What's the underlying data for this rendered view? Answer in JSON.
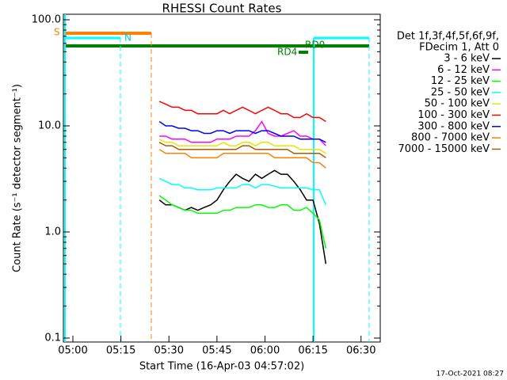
{
  "chart_data": {
    "type": "line",
    "title": "RHESSI Count Rates",
    "x_label": "Start Time (16-Apr-03 04:57:02)",
    "y_label": "Count Rate (s⁻¹ detector segment⁻¹)",
    "footer": "17-Oct-2021 08:27",
    "legend_title": [
      "Det 1f,3f,4f,5f,6f,9f,",
      "FDecim 1, Att 0"
    ],
    "annotations": [
      "S",
      "N",
      "RD0",
      "RD4"
    ],
    "log_y": true,
    "xlim": [
      "04:57:02",
      "06:36:00"
    ],
    "xticks": [
      "05:00",
      "05:15",
      "05:30",
      "05:45",
      "06:00",
      "06:15",
      "06:30"
    ],
    "ylim": [
      0.1,
      100
    ],
    "yticks": [
      0.1,
      {
        "value": 1,
        "label": "1.0"
      },
      {
        "value": 10,
        "label": "10.0"
      },
      {
        "value": 100,
        "label": "100.0"
      }
    ],
    "x": [
      "05:27",
      "05:29",
      "05:31",
      "05:33",
      "05:35",
      "05:37",
      "05:39",
      "05:41",
      "05:43",
      "05:45",
      "05:47",
      "05:49",
      "05:51",
      "05:53",
      "05:55",
      "05:57",
      "05:59",
      "06:01",
      "06:03",
      "06:05",
      "06:07",
      "06:09",
      "06:11",
      "06:13",
      "06:15",
      "06:17",
      "06:19"
    ],
    "series": [
      {
        "name": "3 - 6 keV",
        "color": "#000000",
        "values": [
          2,
          1.8,
          1.8,
          1.7,
          1.6,
          1.7,
          1.6,
          1.7,
          1.8,
          2,
          2.5,
          3,
          3.5,
          3.2,
          3,
          3.5,
          3.2,
          3.5,
          3.8,
          3.5,
          3.5,
          3,
          2.5,
          2,
          2,
          1.2,
          0.5
        ]
      },
      {
        "name": "6 - 12 keV",
        "color": "#ff00ff",
        "values": [
          8,
          8,
          7.5,
          7.5,
          7.5,
          7,
          7,
          7,
          7,
          7.5,
          7.5,
          7.5,
          8,
          8,
          8,
          9,
          11,
          8.5,
          8,
          8,
          8.5,
          9,
          8,
          8,
          7.5,
          7.5,
          6.5
        ]
      },
      {
        "name": "12 - 25 keV",
        "color": "#00ff00",
        "values": [
          2.2,
          2,
          1.8,
          1.7,
          1.6,
          1.6,
          1.5,
          1.5,
          1.5,
          1.5,
          1.6,
          1.6,
          1.7,
          1.7,
          1.7,
          1.8,
          1.8,
          1.7,
          1.7,
          1.8,
          1.8,
          1.6,
          1.6,
          1.7,
          1.5,
          1.3,
          0.7
        ]
      },
      {
        "name": "25 - 50 keV",
        "color": "#00ffff",
        "values": [
          3.2,
          3,
          2.8,
          2.8,
          2.6,
          2.6,
          2.5,
          2.5,
          2.5,
          2.6,
          2.6,
          2.6,
          2.6,
          2.8,
          2.8,
          2.6,
          2.8,
          2.8,
          2.7,
          2.6,
          2.6,
          2.6,
          2.6,
          2.6,
          2.5,
          2.5,
          1.8
        ]
      },
      {
        "name": "50 - 100 keV",
        "color": "#e6e600",
        "values": [
          7.5,
          7,
          7,
          6.5,
          6.5,
          6.5,
          6.5,
          6.5,
          6.5,
          6.5,
          7,
          6.5,
          6.5,
          7,
          7,
          6.5,
          7,
          7,
          6.5,
          6.5,
          6.5,
          6.5,
          6,
          6,
          6,
          6,
          5.5
        ]
      },
      {
        "name": "100 - 300 keV",
        "color": "#ff0000",
        "values": [
          17,
          16,
          15,
          15,
          14,
          14,
          13,
          13,
          13,
          13,
          14,
          13,
          14,
          15,
          14,
          13,
          14,
          15,
          14,
          13,
          13,
          12,
          12,
          13,
          12,
          12,
          11
        ]
      },
      {
        "name": "300 - 800 keV",
        "color": "#0000ff",
        "values": [
          11,
          10,
          10,
          9.5,
          9.5,
          9,
          9,
          8.5,
          8.5,
          9,
          9,
          8.5,
          9,
          9,
          9,
          8.5,
          9,
          9,
          8.5,
          8,
          8,
          8,
          7.5,
          7.5,
          7.5,
          7.5,
          7
        ]
      },
      {
        "name": "800 - 7000 keV",
        "color": "#ff8000",
        "values": [
          6,
          5.5,
          5.5,
          5.5,
          5.5,
          5,
          5,
          5,
          5,
          5,
          5.5,
          5.5,
          5.5,
          5.5,
          5.5,
          5.5,
          5.5,
          5.5,
          5,
          5,
          5,
          5,
          5,
          5,
          4.5,
          4.5,
          4
        ]
      },
      {
        "name": "7000 - 15000 keV",
        "color": "#b05a00",
        "values": [
          7,
          6.5,
          6.5,
          6,
          6,
          6,
          6,
          6,
          6,
          6,
          6,
          6,
          6,
          6.5,
          6.5,
          6,
          6,
          6,
          6,
          6,
          6,
          5.5,
          5.5,
          5.5,
          5.5,
          5.5,
          5
        ]
      }
    ]
  }
}
